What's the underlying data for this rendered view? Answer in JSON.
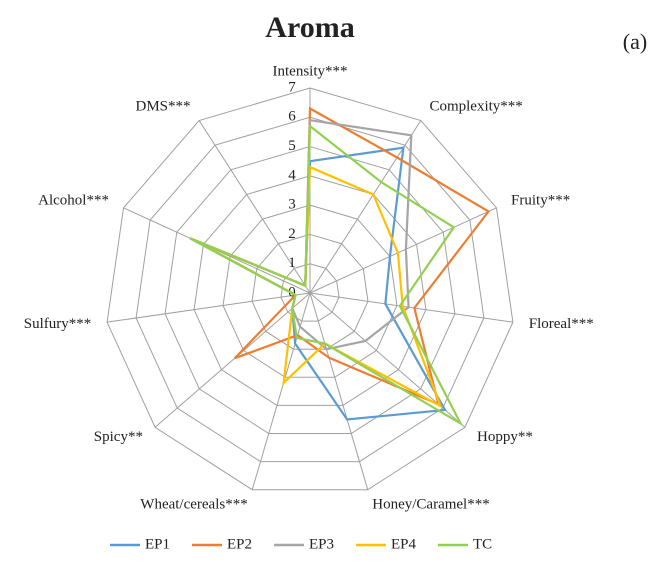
{
  "chart_data": {
    "type": "radar",
    "title": "Aroma",
    "panel_label": "(a)",
    "categories": [
      "Intensity***",
      "Complexity***",
      "Fruity***",
      "Floreal***",
      "Hoppy**",
      "Honey/Caramel***",
      "Wheat/cereals***",
      "Spicy**",
      "Sulfury***",
      "Alcohol***",
      "DMS***"
    ],
    "series": [
      {
        "name": "EP1",
        "color": "#5b9bd5",
        "values": [
          4.5,
          5.9,
          3.0,
          2.6,
          6.1,
          4.5,
          1.8,
          0.8,
          0.5,
          4.5,
          0.3
        ]
      },
      {
        "name": "EP2",
        "color": "#ed7d31",
        "values": [
          6.3,
          5.5,
          6.7,
          3.6,
          5.8,
          2.3,
          1.5,
          3.4,
          0.5,
          4.4,
          0.3
        ]
      },
      {
        "name": "EP3",
        "color": "#a5a5a5",
        "values": [
          5.9,
          6.4,
          3.6,
          3.4,
          2.5,
          2.0,
          1.2,
          0.8,
          0.5,
          4.4,
          0.3
        ]
      },
      {
        "name": "EP4",
        "color": "#ffc000",
        "values": [
          4.3,
          4.0,
          3.3,
          3.2,
          5.9,
          1.8,
          3.2,
          0.8,
          0.5,
          4.4,
          0.3
        ]
      },
      {
        "name": "TC",
        "color": "#92d050",
        "values": [
          5.7,
          4.5,
          5.4,
          3.1,
          6.8,
          1.8,
          1.6,
          0.8,
          0.5,
          4.5,
          0.3
        ]
      }
    ],
    "ylim": [
      0,
      7
    ],
    "yticks": [
      0,
      1,
      2,
      3,
      4,
      5,
      6,
      7
    ],
    "grid": true,
    "legend": "bottom"
  }
}
